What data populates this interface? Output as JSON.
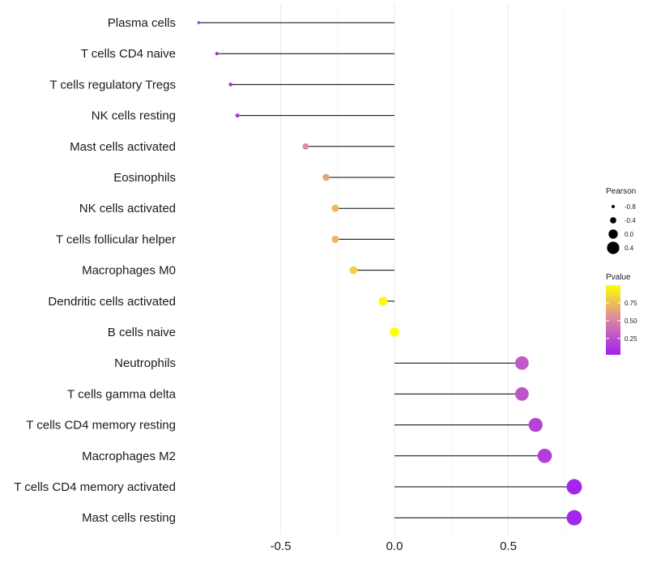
{
  "chart_data": {
    "type": "lollipop",
    "title": "",
    "xlabel": "",
    "ylabel": "",
    "xlim": [
      -0.86,
      0.82
    ],
    "x_ticks": [
      -0.5,
      0.0,
      0.5
    ],
    "x_tick_labels": [
      "-0.5",
      "0.0",
      "0.5"
    ],
    "grid": true,
    "categories": [
      "Plasma cells",
      "T cells CD4 naive",
      "T cells regulatory  Tregs",
      "NK cells resting",
      "Mast cells activated",
      "Eosinophils",
      "NK cells activated",
      "T cells follicular helper",
      "Macrophages M0",
      "Dendritic cells activated",
      "B cells naive",
      "Neutrophils",
      "T cells gamma delta",
      "T cells CD4 memory resting",
      "Macrophages M2",
      "T cells CD4 memory activated",
      "Mast cells resting"
    ],
    "values": [
      -0.86,
      -0.78,
      -0.72,
      -0.69,
      -0.39,
      -0.3,
      -0.26,
      -0.26,
      -0.18,
      -0.05,
      0.0,
      0.56,
      0.56,
      0.62,
      0.66,
      0.79,
      0.79
    ],
    "pvalues": [
      0.02,
      0.05,
      0.1,
      0.12,
      0.55,
      0.65,
      0.72,
      0.72,
      0.82,
      0.97,
      1.0,
      0.3,
      0.28,
      0.2,
      0.17,
      0.05,
      0.05
    ],
    "legend_size": {
      "title": "Pearson",
      "labels": [
        "-0.8",
        "-0.4",
        "0.0",
        "0.4"
      ],
      "values": [
        -0.8,
        -0.4,
        0.0,
        0.4
      ]
    },
    "legend_color": {
      "title": "Pvalue",
      "labels": [
        "0.75",
        "0.50",
        "0.25"
      ],
      "values": [
        0.75,
        0.5,
        0.25
      ],
      "range": [
        0.02,
        1.0
      ],
      "color_low": "#a020f0",
      "color_high": "#ffff00"
    },
    "stem_color": "#000000",
    "legend_position": "right"
  }
}
